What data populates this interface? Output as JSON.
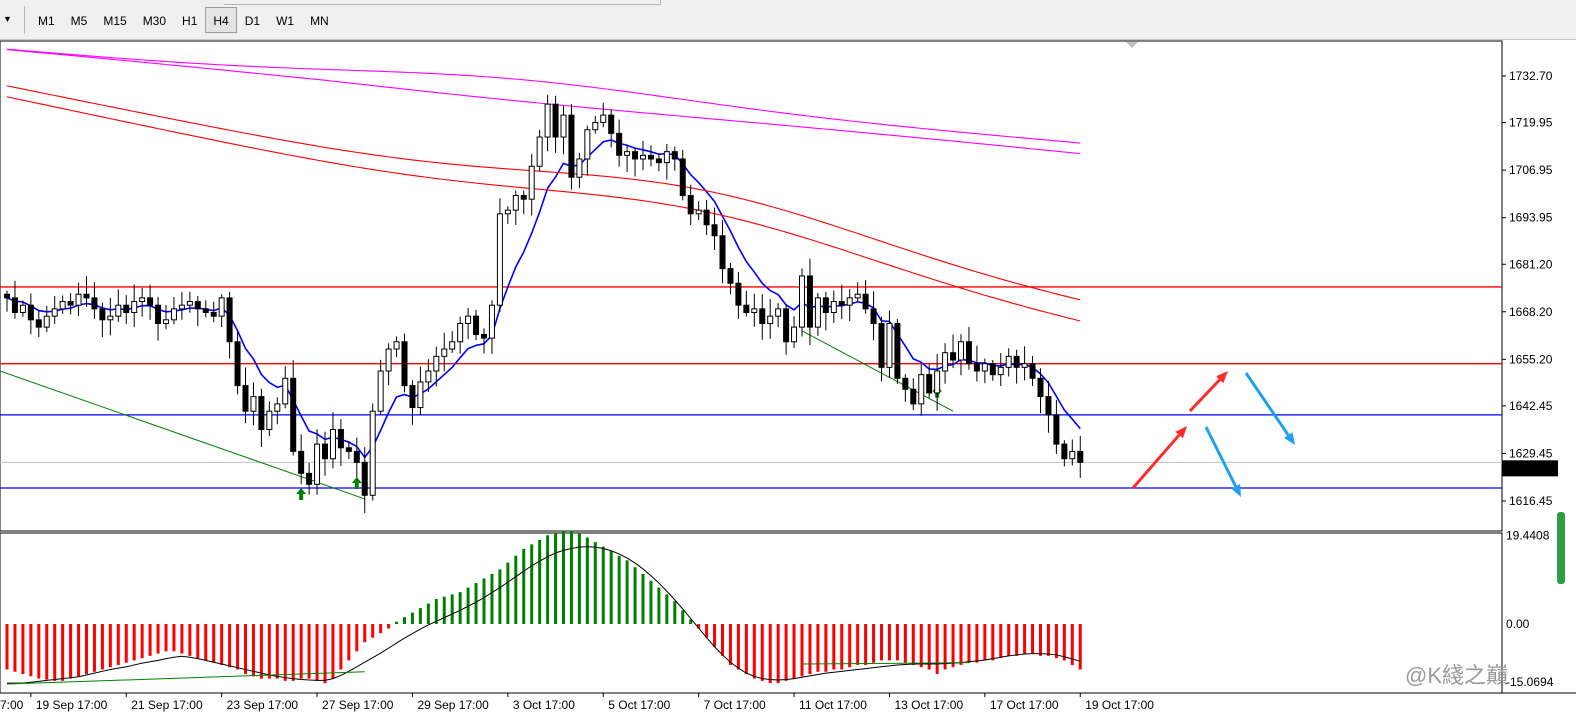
{
  "toolbar": {
    "timeframes": [
      {
        "label": "M1",
        "active": false
      },
      {
        "label": "M5",
        "active": false
      },
      {
        "label": "M15",
        "active": false
      },
      {
        "label": "M30",
        "active": false
      },
      {
        "label": "H1",
        "active": false
      },
      {
        "label": "H4",
        "active": true
      },
      {
        "label": "D1",
        "active": false
      },
      {
        "label": "W1",
        "active": false
      },
      {
        "label": "MN",
        "active": false
      }
    ]
  },
  "chart_data": [
    {
      "type": "candlestick",
      "timeframe": "H4",
      "ylim": [
        1608.5,
        1742.0
      ],
      "yticks": [
        "1732.70",
        "1719.95",
        "1706.95",
        "1693.95",
        "1681.20",
        "1668.20",
        "1655.20",
        "1642.45",
        "1629.45",
        "1616.45"
      ],
      "current_price": "1625.37",
      "xticks": [
        {
          "bar": 3,
          "label": "19 Sep 17:00"
        },
        {
          "bar": 15,
          "label": "21 Sep 17:00"
        },
        {
          "bar": 27,
          "label": "23 Sep 17:00"
        },
        {
          "bar": 39,
          "label": "27 Sep 17:00"
        },
        {
          "bar": 51,
          "label": "29 Sep 17:00"
        },
        {
          "bar": 63,
          "label": "3 Oct 17:00"
        },
        {
          "bar": 75,
          "label": "5 Oct 17:00"
        },
        {
          "bar": 87,
          "label": "7 Oct 17:00"
        },
        {
          "bar": 99,
          "label": "11 Oct 17:00"
        },
        {
          "bar": 111,
          "label": "13 Oct 17:00"
        },
        {
          "bar": 123,
          "label": "17 Oct 17:00"
        },
        {
          "bar": 135,
          "label": "19 Oct 17:00"
        }
      ],
      "first_xlabel_partial": "7:00",
      "close": [
        1672,
        1668,
        1670,
        1666,
        1664,
        1667,
        1669,
        1671,
        1670,
        1673,
        1672,
        1669,
        1666,
        1667,
        1670,
        1668,
        1671,
        1672,
        1670,
        1665,
        1666,
        1669,
        1670,
        1671,
        1669,
        1668,
        1667,
        1672,
        1660,
        1648,
        1641,
        1645,
        1636,
        1641,
        1643,
        1650,
        1630,
        1624,
        1621,
        1632,
        1628,
        1636,
        1631,
        1630,
        1627,
        1618,
        1641,
        1652,
        1658,
        1660,
        1648,
        1642,
        1649,
        1652,
        1656,
        1658,
        1660,
        1665,
        1667,
        1662,
        1661,
        1670,
        1695,
        1696,
        1700,
        1699,
        1708,
        1716,
        1725,
        1716,
        1722,
        1705,
        1710,
        1718,
        1720,
        1722,
        1717,
        1711,
        1712,
        1710,
        1711,
        1710,
        1709,
        1712,
        1710,
        1700,
        1695,
        1696,
        1692,
        1689,
        1680,
        1676,
        1670,
        1668,
        1669,
        1665,
        1667,
        1669,
        1660,
        1664,
        1678,
        1664,
        1672,
        1668,
        1671,
        1670,
        1672,
        1673,
        1669,
        1665,
        1653,
        1665,
        1650,
        1647,
        1643,
        1651,
        1646,
        1652,
        1657,
        1655,
        1660,
        1654,
        1652,
        1654,
        1651,
        1653,
        1656,
        1653,
        1654,
        1650,
        1645,
        1640,
        1632,
        1628,
        1630,
        1627
      ],
      "ma_blue_start_end": [
        1672,
        1641
      ],
      "hlines": [
        {
          "price": 1675.0,
          "color": "#ff0000"
        },
        {
          "price": 1654.0,
          "color": "#ff0000"
        },
        {
          "price": 1640.0,
          "color": "#0000ff"
        },
        {
          "price": 1620.0,
          "color": "#0000ff"
        }
      ],
      "up_arrow_markers_bars": [
        37,
        44,
        117
      ],
      "projection_arrows": [
        {
          "color": "#ff2a2a",
          "from": [
            1133,
            488
          ],
          "to": [
            1187,
            426
          ]
        },
        {
          "color": "#ff2a2a",
          "from": [
            1190,
            411
          ],
          "to": [
            1228,
            371
          ]
        },
        {
          "color": "#1ea0f0",
          "from": [
            1206,
            427
          ],
          "to": [
            1241,
            497
          ]
        },
        {
          "color": "#1ea0f0",
          "from": [
            1246,
            373
          ],
          "to": [
            1295,
            445
          ]
        }
      ]
    },
    {
      "type": "histogram",
      "ylim": [
        -15.0694,
        19.4408
      ],
      "yticks": [
        "19.4408",
        "0.00",
        "-15.0694"
      ],
      "values": [
        -10,
        -10.5,
        -11,
        -11.5,
        -12,
        -12.2,
        -12.5,
        -12.5,
        -12,
        -11.5,
        -11,
        -10.5,
        -10,
        -9.5,
        -9,
        -8.5,
        -8,
        -7.5,
        -7,
        -6.5,
        -6,
        -6,
        -6.5,
        -7,
        -7.5,
        -8,
        -8.5,
        -9,
        -9.5,
        -10,
        -11,
        -11.5,
        -12,
        -12,
        -12,
        -12.5,
        -12.5,
        -12,
        -12,
        -12.5,
        -13,
        -12,
        -10,
        -8,
        -6,
        -4,
        -3,
        -2,
        -1,
        0.5,
        1.5,
        2.5,
        3.5,
        4.5,
        5.5,
        6,
        6.5,
        7,
        8,
        9,
        10,
        11,
        12,
        13.5,
        15,
        16.5,
        17.5,
        18.5,
        19.5,
        20,
        20.5,
        20.5,
        20,
        19,
        18,
        17,
        16,
        15,
        14,
        12.5,
        11,
        9.5,
        8,
        6.5,
        5,
        3,
        1,
        -1,
        -3,
        -5,
        -7,
        -9,
        -10,
        -11,
        -12,
        -12.5,
        -13,
        -13,
        -12.5,
        -12,
        -11.5,
        -11,
        -10.5,
        -10.5,
        -10,
        -10,
        -9.5,
        -9,
        -9,
        -8.5,
        -8,
        -8,
        -8,
        -8.5,
        -9,
        -9.5,
        -10,
        -11,
        -10,
        -9.5,
        -9,
        -8.5,
        -8.5,
        -8,
        -8,
        -7.5,
        -7,
        -7,
        -6.5,
        -6.5,
        -7,
        -7,
        -7.5,
        -8,
        -9,
        -10
      ],
      "line_black": [
        -13,
        -13,
        -13,
        -12.8,
        -12.6,
        -12.4,
        -12.2,
        -12,
        -11.8,
        -11.6,
        -11.2,
        -10.8,
        -10.4,
        -10,
        -9.7,
        -9.4,
        -9,
        -8.6,
        -8.3,
        -8,
        -7.6,
        -7.3,
        -7.1,
        -7.3,
        -7.6,
        -8,
        -8.4,
        -8.8,
        -9.2,
        -9.6,
        -10,
        -10.4,
        -10.8,
        -11.2,
        -11.5,
        -11.8,
        -12,
        -12.2,
        -12.3,
        -12.4,
        -12.4,
        -12,
        -11.3,
        -10.4,
        -9.4,
        -8.4,
        -7.4,
        -6.4,
        -5.3,
        -4.2,
        -3.1,
        -2.1,
        -1.1,
        -0.2,
        0.6,
        1.4,
        2.2,
        3,
        3.9,
        4.8,
        5.8,
        6.9,
        8,
        9.2,
        10.4,
        11.6,
        12.8,
        13.8,
        14.8,
        15.6,
        16.2,
        16.6,
        16.9,
        17,
        16.9,
        16.6,
        16.1,
        15.4,
        14.5,
        13.4,
        12.1,
        10.6,
        9,
        7.2,
        5.3,
        3.3,
        1.2,
        -0.9,
        -3,
        -5,
        -6.8,
        -8.4,
        -9.7,
        -10.8,
        -11.5,
        -12,
        -12.2,
        -12.3,
        -12.2,
        -12,
        -11.7,
        -11.4,
        -11.1,
        -10.8,
        -10.6,
        -10.4,
        -10.2,
        -10,
        -9.8,
        -9.6,
        -9.4,
        -9.2,
        -9,
        -8.9,
        -8.8,
        -8.8,
        -8.8,
        -8.8,
        -8.7,
        -8.6,
        -8.5,
        -8.3,
        -8.1,
        -7.9,
        -7.6,
        -7.3,
        -7,
        -6.8,
        -6.6,
        -6.5,
        -6.5,
        -6.6,
        -6.8,
        -7.2,
        -7.7,
        -8.2
      ]
    }
  ],
  "watermark": "@K綫之巔"
}
